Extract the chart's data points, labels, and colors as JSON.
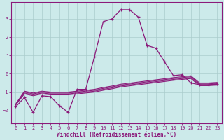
{
  "xlabel": "Windchill (Refroidissement éolien,°C)",
  "background_color": "#cceaea",
  "line_color": "#8b1a7a",
  "grid_color": "#aacccc",
  "x_ticks": [
    0,
    1,
    2,
    3,
    4,
    5,
    6,
    7,
    8,
    9,
    10,
    11,
    12,
    13,
    14,
    15,
    16,
    17,
    18,
    19,
    20,
    21,
    22,
    23
  ],
  "y_ticks": [
    -2,
    -1,
    0,
    1,
    2,
    3
  ],
  "xlim": [
    -0.5,
    23.5
  ],
  "ylim": [
    -2.7,
    3.9
  ],
  "marker": "+",
  "main_line": {
    "x": [
      0,
      1,
      2,
      3,
      4,
      5,
      6,
      7,
      8,
      9,
      10,
      11,
      12,
      13,
      14,
      15,
      16,
      17,
      18,
      19,
      20,
      21,
      22,
      23
    ],
    "y": [
      -1.8,
      -1.3,
      -2.1,
      -1.2,
      -1.25,
      -1.75,
      -2.1,
      -0.85,
      -0.85,
      0.95,
      2.85,
      3.0,
      3.5,
      3.5,
      3.1,
      1.55,
      1.4,
      0.65,
      -0.1,
      -0.05,
      -0.5,
      -0.6,
      -0.6,
      -0.55
    ]
  },
  "flat_lines": [
    {
      "x": [
        0,
        1,
        2,
        3,
        4,
        5,
        6,
        7,
        8,
        9,
        10,
        11,
        12,
        13,
        14,
        15,
        16,
        17,
        18,
        19,
        20,
        21,
        22,
        23
      ],
      "y": [
        -1.7,
        -1.0,
        -1.1,
        -1.0,
        -1.05,
        -1.05,
        -1.05,
        -1.0,
        -0.95,
        -0.9,
        -0.8,
        -0.72,
        -0.62,
        -0.56,
        -0.5,
        -0.44,
        -0.38,
        -0.32,
        -0.26,
        -0.21,
        -0.16,
        -0.55,
        -0.55,
        -0.52
      ]
    },
    {
      "x": [
        0,
        1,
        2,
        3,
        4,
        5,
        6,
        7,
        8,
        9,
        10,
        11,
        12,
        13,
        14,
        15,
        16,
        17,
        18,
        19,
        20,
        21,
        22,
        23
      ],
      "y": [
        -1.7,
        -1.05,
        -1.15,
        -1.05,
        -1.1,
        -1.1,
        -1.1,
        -1.05,
        -1.0,
        -0.95,
        -0.85,
        -0.77,
        -0.67,
        -0.61,
        -0.55,
        -0.49,
        -0.43,
        -0.37,
        -0.31,
        -0.26,
        -0.21,
        -0.6,
        -0.6,
        -0.57
      ]
    },
    {
      "x": [
        0,
        1,
        2,
        3,
        4,
        5,
        6,
        7,
        8,
        9,
        10,
        11,
        12,
        13,
        14,
        15,
        16,
        17,
        18,
        19,
        20,
        21,
        22,
        23
      ],
      "y": [
        -1.7,
        -1.1,
        -1.2,
        -1.1,
        -1.15,
        -1.15,
        -1.15,
        -1.1,
        -1.05,
        -1.0,
        -0.9,
        -0.82,
        -0.72,
        -0.66,
        -0.6,
        -0.54,
        -0.48,
        -0.42,
        -0.36,
        -0.31,
        -0.26,
        -0.65,
        -0.65,
        -0.62
      ]
    },
    {
      "x": [
        0,
        1,
        2,
        3,
        4,
        5,
        6,
        7,
        8,
        9,
        10,
        11,
        12,
        13,
        14,
        15,
        16,
        17,
        18,
        19,
        20,
        21,
        22,
        23
      ],
      "y": [
        -1.65,
        -0.95,
        -1.05,
        -0.95,
        -1.0,
        -1.0,
        -1.0,
        -0.95,
        -0.9,
        -0.85,
        -0.75,
        -0.67,
        -0.57,
        -0.51,
        -0.45,
        -0.39,
        -0.33,
        -0.27,
        -0.21,
        -0.16,
        -0.11,
        -0.5,
        -0.5,
        -0.47
      ]
    }
  ]
}
